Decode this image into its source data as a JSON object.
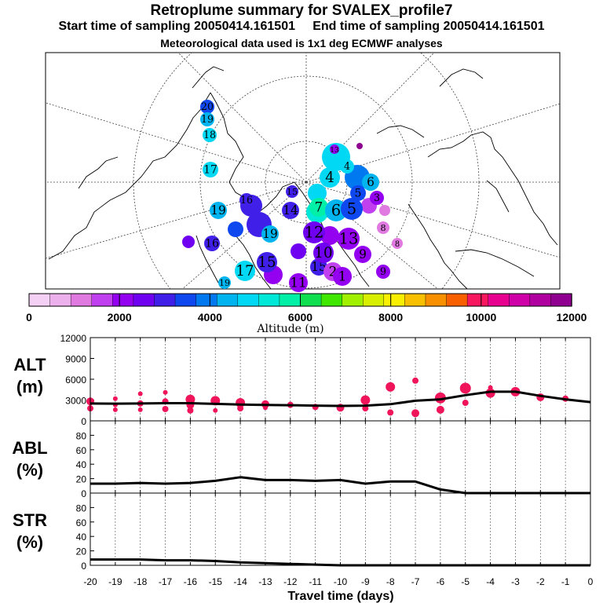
{
  "header": {
    "title": "Retroplume summary for SVALEX_profile7",
    "start_label": "Start time of sampling 20050414.161501",
    "end_label": "End time of sampling 20050414.161501",
    "met_label": "Meteorological data used is 1x1 deg ECMWF analyses"
  },
  "colorbar": {
    "label": "Altitude (m)",
    "ticks": [
      "0",
      "2000",
      "4000",
      "6000",
      "8000",
      "10000",
      "12000"
    ],
    "colors": [
      "#f4d0f4",
      "#ecb0ec",
      "#e07ae0",
      "#c040f0",
      "#9400f0",
      "#7000f0",
      "#4020e8",
      "#1048f0",
      "#0078f0",
      "#00b4f0",
      "#00d8f4",
      "#00e8d8",
      "#00f0a8",
      "#10e050",
      "#40e800",
      "#a0f000",
      "#d8f000",
      "#f8f000",
      "#f8c000",
      "#f89000",
      "#f86000",
      "#f81860",
      "#e80090",
      "#d000a8",
      "#b000a0",
      "#900090"
    ]
  },
  "map": {
    "markers": [
      {
        "label": "20",
        "color": "#1048f0"
      },
      {
        "label": "19",
        "color": "#00b4f0"
      },
      {
        "label": "18",
        "color": "#00d8f4"
      },
      {
        "label": "17",
        "color": "#00d8f4"
      },
      {
        "label": "16",
        "color": "#4020e8"
      },
      {
        "label": "15",
        "color": "#4020e8"
      },
      {
        "label": "14",
        "color": "#4020e8"
      },
      {
        "label": "13",
        "color": "#9400f0"
      },
      {
        "label": "12",
        "color": "#7000f0"
      },
      {
        "label": "11",
        "color": "#9400f0"
      },
      {
        "label": "10",
        "color": "#7000f0"
      },
      {
        "label": "9",
        "color": "#9400f0"
      },
      {
        "label": "8",
        "color": "#e07ae0"
      },
      {
        "label": "7",
        "color": "#00f0a8"
      },
      {
        "label": "6",
        "color": "#00b4f0"
      },
      {
        "label": "5",
        "color": "#1048f0"
      },
      {
        "label": "4",
        "color": "#00d8f4"
      },
      {
        "label": "3",
        "color": "#9400f0"
      },
      {
        "label": "2",
        "color": "#c040f0"
      },
      {
        "label": "1",
        "color": "#9400f0"
      }
    ]
  },
  "chart_data": [
    {
      "type": "scatter",
      "name": "ALT",
      "ylabel": "ALT",
      "yunit": "(m)",
      "ylim": [
        0,
        12000
      ],
      "yticks": [
        0,
        3000,
        6000,
        9000,
        12000
      ],
      "line": [
        [
          -20,
          2500
        ],
        [
          -19,
          2480
        ],
        [
          -18,
          2500
        ],
        [
          -17,
          2550
        ],
        [
          -16,
          2550
        ],
        [
          -15,
          2450
        ],
        [
          -14,
          2350
        ],
        [
          -13,
          2300
        ],
        [
          -12,
          2250
        ],
        [
          -11,
          2200
        ],
        [
          -10,
          2150
        ],
        [
          -9,
          2200
        ],
        [
          -8,
          2400
        ],
        [
          -7,
          2900
        ],
        [
          -6,
          3100
        ],
        [
          -5,
          3700
        ],
        [
          -4,
          4200
        ],
        [
          -3,
          4200
        ],
        [
          -2,
          3600
        ],
        [
          -1,
          3100
        ],
        [
          0,
          2700
        ]
      ],
      "points": [
        [
          -20,
          2800,
          5
        ],
        [
          -20,
          1800,
          4
        ],
        [
          -19,
          3200,
          3
        ],
        [
          -19,
          2300,
          3
        ],
        [
          -19,
          1600,
          3
        ],
        [
          -18,
          3900,
          3
        ],
        [
          -18,
          2500,
          4
        ],
        [
          -18,
          1600,
          3
        ],
        [
          -17,
          4100,
          3
        ],
        [
          -17,
          2800,
          4
        ],
        [
          -17,
          1700,
          4
        ],
        [
          -16,
          3100,
          6
        ],
        [
          -16,
          2300,
          5
        ],
        [
          -16,
          1500,
          4
        ],
        [
          -15,
          2900,
          6
        ],
        [
          -15,
          1500,
          3
        ],
        [
          -14,
          2600,
          6
        ],
        [
          -14,
          1800,
          4
        ],
        [
          -13,
          2400,
          5
        ],
        [
          -13,
          1900,
          3
        ],
        [
          -12,
          2300,
          4
        ],
        [
          -11,
          2000,
          4
        ],
        [
          -10,
          1900,
          5
        ],
        [
          -9,
          3000,
          6
        ],
        [
          -9,
          1800,
          4
        ],
        [
          -8,
          4900,
          6
        ],
        [
          -8,
          1200,
          4
        ],
        [
          -7,
          5800,
          4
        ],
        [
          -7,
          1100,
          5
        ],
        [
          -6,
          3300,
          7
        ],
        [
          -6,
          1600,
          5
        ],
        [
          -5,
          4700,
          7
        ],
        [
          -5,
          2600,
          4
        ],
        [
          -4,
          4000,
          6
        ],
        [
          -4,
          4800,
          3
        ],
        [
          -3,
          4200,
          6
        ],
        [
          -2,
          3400,
          5
        ],
        [
          -1,
          3200,
          4
        ]
      ]
    },
    {
      "type": "line",
      "name": "ABL",
      "ylabel": "ABL",
      "yunit": "(%)",
      "ylim": [
        0,
        100
      ],
      "yticks": [
        0,
        20,
        40,
        60,
        80
      ],
      "line": [
        [
          -20,
          13
        ],
        [
          -19,
          13
        ],
        [
          -18,
          14
        ],
        [
          -17,
          13
        ],
        [
          -16,
          14
        ],
        [
          -15,
          17
        ],
        [
          -14,
          22
        ],
        [
          -13,
          18
        ],
        [
          -12,
          18
        ],
        [
          -11,
          17
        ],
        [
          -10,
          18
        ],
        [
          -9,
          13
        ],
        [
          -8,
          16
        ],
        [
          -7,
          16
        ],
        [
          -6,
          5
        ],
        [
          -5,
          0
        ],
        [
          -4,
          0
        ],
        [
          -3,
          0
        ],
        [
          -2,
          0
        ],
        [
          -1,
          0
        ],
        [
          0,
          0
        ]
      ]
    },
    {
      "type": "line",
      "name": "STR",
      "ylabel": "STR",
      "yunit": "(%)",
      "ylim": [
        0,
        100
      ],
      "yticks": [
        0,
        20,
        40,
        60,
        80
      ],
      "line": [
        [
          -20,
          8
        ],
        [
          -19,
          8
        ],
        [
          -18,
          8
        ],
        [
          -17,
          7
        ],
        [
          -16,
          7
        ],
        [
          -15,
          6
        ],
        [
          -14,
          4
        ],
        [
          -13,
          3
        ],
        [
          -12,
          2
        ],
        [
          -11,
          1
        ],
        [
          -10,
          0
        ],
        [
          -9,
          0
        ],
        [
          -8,
          0
        ],
        [
          -7,
          0
        ],
        [
          -6,
          0
        ],
        [
          -5,
          0
        ],
        [
          -4,
          0
        ],
        [
          -3,
          0
        ],
        [
          -2,
          0
        ],
        [
          -1,
          0
        ],
        [
          0,
          0
        ]
      ]
    }
  ],
  "xaxis": {
    "label": "Travel time (days)",
    "ticks": [
      "-20",
      "-19",
      "-18",
      "-17",
      "-16",
      "-15",
      "-14",
      "-13",
      "-12",
      "-11",
      "-10",
      "-9",
      "-8",
      "-7",
      "-6",
      "-5",
      "-4",
      "-3",
      "-2",
      "-1",
      "0"
    ]
  }
}
